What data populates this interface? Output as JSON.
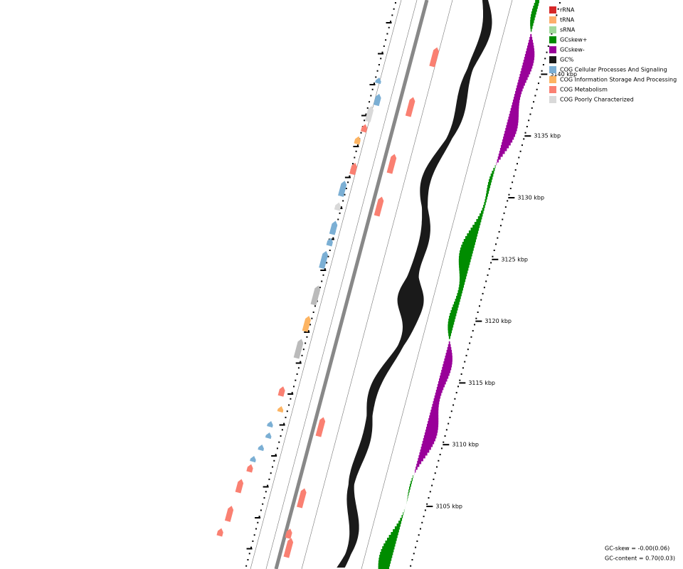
{
  "legend": [
    {
      "label": "rRNA",
      "color": "#d62728"
    },
    {
      "label": "tRNA",
      "color": "#fdae6b"
    },
    {
      "label": "sRNA",
      "color": "#a1d99b"
    },
    {
      "label": "GCskew+",
      "color": "#008c00"
    },
    {
      "label": "GCskew-",
      "color": "#990099"
    },
    {
      "label": "GC%",
      "color": "#1a1a1a"
    },
    {
      "label": "COG Cellular Processes And Signaling",
      "color": "#7bafd4"
    },
    {
      "label": "COG Information Storage And Processing",
      "color": "#fdb462"
    },
    {
      "label": "COG Metabolism",
      "color": "#fa8072"
    },
    {
      "label": "COG Poorly Characterized",
      "color": "#d9d9d9"
    }
  ],
  "ticks": [
    "3105 kbp",
    "3110 kbp",
    "3115 kbp",
    "3120 kbp",
    "3125 kbp",
    "3130 kbp",
    "3135 kbp",
    "3140 kbp"
  ],
  "stats": [
    "GC-skew = -0.00(0.06)",
    "GC-content = 0.70(0.03)"
  ]
}
